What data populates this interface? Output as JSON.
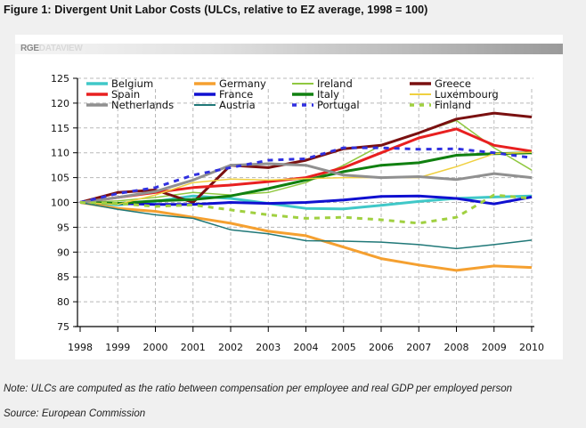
{
  "figure": {
    "title": "Figure 1: Divergent Unit Labor Costs (ULCs, relative to EZ average, 1998 = 100)",
    "brand_part1": "RGE",
    "brand_part2": "DATAVIEW",
    "note": "Note: ULCs are computed as the ratio between compensation per employee and real GDP per employed person",
    "source": "Source: European Commission"
  },
  "chart_data": {
    "type": "line",
    "title": "Divergent Unit Labor Costs (ULCs, relative to EZ average, 1998 = 100)",
    "xlabel": "",
    "ylabel": "",
    "x": [
      1998,
      1999,
      2000,
      2001,
      2002,
      2003,
      2004,
      2005,
      2006,
      2007,
      2008,
      2009,
      2010
    ],
    "ylim": [
      75,
      125
    ],
    "yticks": [
      75,
      80,
      85,
      90,
      95,
      100,
      105,
      110,
      115,
      120,
      125
    ],
    "grid": true,
    "legend": "top",
    "series": [
      {
        "name": "Belgium",
        "color": "#40c8c8",
        "style": "solid",
        "width": "thick",
        "values": [
          100,
          99.5,
          100.2,
          101.3,
          100.8,
          99.8,
          98.8,
          98.7,
          99.4,
          100.2,
          100.8,
          101.1,
          101.3
        ]
      },
      {
        "name": "Germany",
        "color": "#f5a030",
        "style": "solid",
        "width": "thick",
        "values": [
          100,
          98.8,
          98.2,
          97.0,
          95.8,
          94.2,
          93.3,
          91.0,
          88.7,
          87.4,
          86.3,
          87.2,
          86.9
        ]
      },
      {
        "name": "Ireland",
        "color": "#90c840",
        "style": "solid",
        "width": "thin",
        "values": [
          100,
          100.3,
          101.0,
          102.0,
          101.5,
          102.0,
          104.0,
          107.5,
          111.5,
          114.0,
          116.5,
          111.0,
          106.5
        ]
      },
      {
        "name": "Greece",
        "color": "#7a1010",
        "style": "solid",
        "width": "thick",
        "values": [
          100,
          102.0,
          102.5,
          100.0,
          107.5,
          107.0,
          108.5,
          110.8,
          111.5,
          114.0,
          116.8,
          118.0,
          117.2
        ]
      },
      {
        "name": "Spain",
        "color": "#e82020",
        "style": "solid",
        "width": "thick",
        "values": [
          100,
          101.0,
          102.0,
          103.0,
          103.5,
          104.2,
          105.0,
          107.0,
          110.0,
          113.0,
          114.8,
          111.5,
          110.3
        ]
      },
      {
        "name": "France",
        "color": "#1010d0",
        "style": "solid",
        "width": "thick",
        "values": [
          100,
          99.8,
          99.6,
          99.6,
          100.0,
          99.8,
          100.0,
          100.5,
          101.2,
          101.3,
          100.8,
          99.7,
          101.1
        ]
      },
      {
        "name": "Italy",
        "color": "#108010",
        "style": "solid",
        "width": "thick",
        "values": [
          100,
          99.8,
          100.3,
          100.6,
          101.3,
          102.8,
          104.5,
          106.2,
          107.5,
          108.0,
          109.5,
          109.8,
          110.0
        ]
      },
      {
        "name": "Luxembourg",
        "color": "#f0d040",
        "style": "solid",
        "width": "thin",
        "values": [
          100,
          99.6,
          101.5,
          104.0,
          104.7,
          104.5,
          104.8,
          105.0,
          105.0,
          105.0,
          107.2,
          109.8,
          110.1
        ]
      },
      {
        "name": "Netherlands",
        "color": "#909090",
        "style": "solid",
        "width": "thick",
        "values": [
          100,
          101.0,
          102.2,
          104.5,
          107.5,
          107.8,
          107.5,
          105.5,
          105.0,
          105.2,
          104.6,
          105.8,
          105.0
        ]
      },
      {
        "name": "Austria",
        "color": "#207878",
        "style": "solid",
        "width": "thin",
        "values": [
          100,
          98.6,
          97.5,
          96.8,
          94.5,
          93.7,
          92.3,
          92.2,
          92.0,
          91.5,
          90.7,
          91.5,
          92.4
        ]
      },
      {
        "name": "Portugal",
        "color": "#3030e0",
        "style": "dashed",
        "width": "thick",
        "values": [
          100,
          101.8,
          103.0,
          105.5,
          107.0,
          108.5,
          108.8,
          111.0,
          111.0,
          110.7,
          110.8,
          110.0,
          109.0
        ]
      },
      {
        "name": "Finland",
        "color": "#a0d040",
        "style": "dashed",
        "width": "thick",
        "values": [
          100,
          99.8,
          99.2,
          99.5,
          98.5,
          97.5,
          96.8,
          97.0,
          96.5,
          95.8,
          97.0,
          101.5,
          100.8
        ]
      }
    ]
  }
}
